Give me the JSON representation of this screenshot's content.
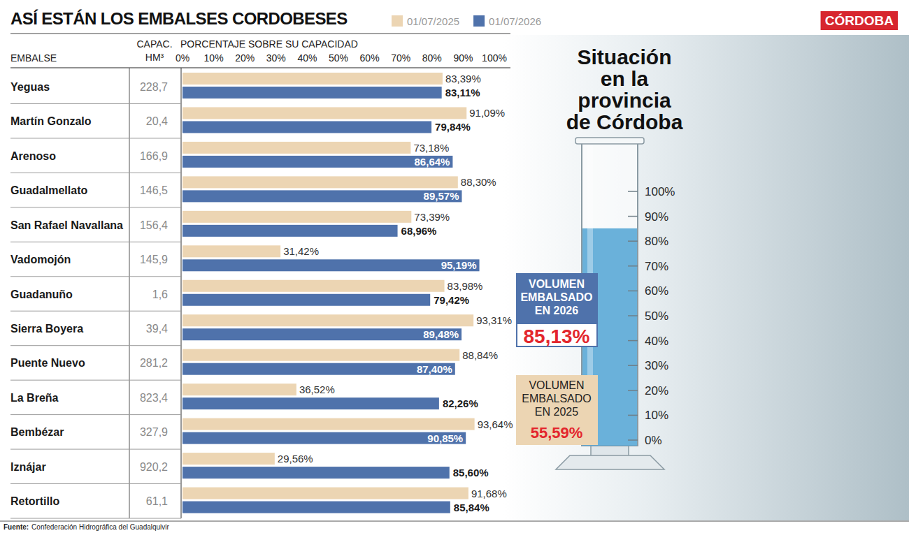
{
  "header": {
    "logo": "CÓRDOBA"
  },
  "chart_data": [
    {
      "type": "bar",
      "orientation": "horizontal",
      "title": "ASÍ ESTÁN LOS EMBALSES CORDOBESES",
      "ylabel": "EMBALSE",
      "xlabel": "PORCENTAJE SOBRE SU CAPACIDAD",
      "categories": [
        "Yeguas",
        "Martín Gonzalo",
        "Arenoso",
        "Guadalmellato",
        "San Rafael Navallana",
        "Vadomojón",
        "Guadanuño",
        "Sierra Boyera",
        "Puente Nuevo",
        "La Breña",
        "Bembézar",
        "Iznájar",
        "Retortillo"
      ],
      "capacity": {
        "title": "CAPAC. HM³",
        "values": [
          228.7,
          20.4,
          166.9,
          146.5,
          156.4,
          145.9,
          1.6,
          39.4,
          281.2,
          823.4,
          327.9,
          920.2,
          61.1
        ],
        "value_labels": [
          "228,7",
          "20,4",
          "166,9",
          "146,5",
          "156,4",
          "145,9",
          "1,6",
          "39,4",
          "281,2",
          "823,4",
          "327,9",
          "920,2",
          "61,1"
        ]
      },
      "series": [
        {
          "name": "01/07/2025",
          "color": "#ecd5b3",
          "values": [
            83.39,
            91.09,
            73.18,
            88.3,
            73.39,
            31.42,
            83.98,
            93.31,
            88.84,
            36.52,
            93.64,
            29.56,
            91.68
          ],
          "value_labels": [
            "83,39%",
            "91,09%",
            "73,18%",
            "88,30%",
            "73,39%",
            "31,42%",
            "83,98%",
            "93,31%",
            "88,84%",
            "36,52%",
            "93,64%",
            "29,56%",
            "91,68%"
          ]
        },
        {
          "name": "01/07/2026",
          "color": "#4f72ab",
          "values": [
            83.11,
            79.84,
            86.64,
            89.57,
            68.96,
            95.19,
            79.42,
            89.48,
            87.4,
            82.26,
            90.85,
            85.6,
            85.84
          ],
          "value_labels": [
            "83,11%",
            "79,84%",
            "86,64%",
            "89,57%",
            "68,96%",
            "95,19%",
            "79,42%",
            "89,48%",
            "87,40%",
            "82,26%",
            "90,85%",
            "85,60%",
            "85,84%"
          ]
        }
      ],
      "xlim": [
        0,
        100
      ],
      "xticks": [
        {
          "value": 0,
          "label": "0%"
        },
        {
          "value": 10,
          "label": "10%"
        },
        {
          "value": 20,
          "label": "20%"
        },
        {
          "value": 30,
          "label": "30%"
        },
        {
          "value": 40,
          "label": "40%"
        },
        {
          "value": 50,
          "label": "50%"
        },
        {
          "value": 60,
          "label": "60%"
        },
        {
          "value": 70,
          "label": "70%"
        },
        {
          "value": 80,
          "label": "80%"
        },
        {
          "value": 90,
          "label": "90%"
        },
        {
          "value": 100,
          "label": "100%"
        }
      ],
      "grid": false,
      "legend": "top",
      "data_labels": true
    },
    {
      "type": "gauge",
      "title": "Situación en la provincia de Córdoba",
      "ylim": [
        0,
        100
      ],
      "yticks": [
        {
          "value": 0,
          "label": "0%"
        },
        {
          "value": 10,
          "label": "10%"
        },
        {
          "value": 20,
          "label": "20%"
        },
        {
          "value": 30,
          "label": "30%"
        },
        {
          "value": 40,
          "label": "40%"
        },
        {
          "value": 50,
          "label": "50%"
        },
        {
          "value": 60,
          "label": "60%"
        },
        {
          "value": 70,
          "label": "70%"
        },
        {
          "value": 80,
          "label": "80%"
        },
        {
          "value": 90,
          "label": "90%"
        },
        {
          "value": 100,
          "label": "100%"
        }
      ],
      "series": [
        {
          "name": "VOLUMEN EMBALSADO EN 2026",
          "color": "#4f72ab",
          "values": [
            85.13
          ],
          "value_labels": [
            "85,13%"
          ]
        },
        {
          "name": "VOLUMEN EMBALSADO EN 2025",
          "color": "#ecd5b3",
          "values": [
            55.59
          ],
          "value_labels": [
            "55,59%"
          ]
        }
      ]
    }
  ],
  "footer": {
    "source_label": "Fuente:",
    "source": "Confederación Hidrográfica del Guadalquivir"
  }
}
